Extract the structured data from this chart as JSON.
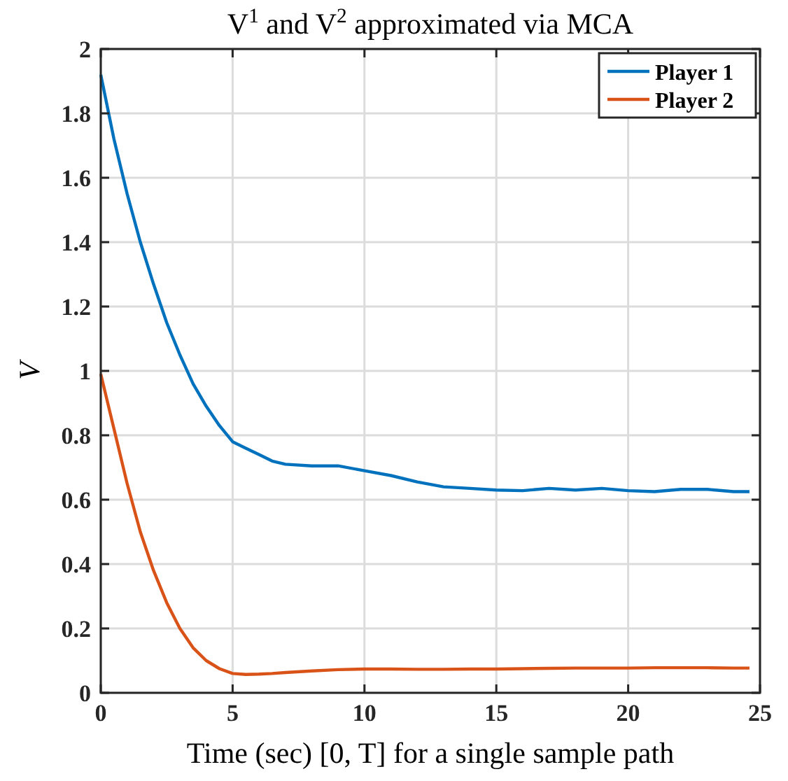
{
  "chart_data": {
    "type": "line",
    "title": "V$^{1}$ and V$^{2}$ approximated via MCA",
    "xlabel": "Time (sec) [0, T] for a single sample path",
    "ylabel": "V",
    "xlim": [
      0,
      25
    ],
    "xticks": [
      0,
      5,
      10,
      15,
      20,
      25
    ],
    "ylim": [
      0,
      2
    ],
    "yticks": [
      0,
      0.2,
      0.4,
      0.6,
      0.8,
      1,
      1.2,
      1.4,
      1.6,
      1.8,
      2
    ],
    "grid": true,
    "legend": "top right",
    "line_style": "solid",
    "marker": "none",
    "x": [
      0,
      0.5,
      1,
      1.5,
      2,
      2.5,
      3,
      3.5,
      4,
      4.5,
      5,
      5.5,
      6,
      6.5,
      7,
      8,
      9,
      10,
      11,
      12,
      13,
      14,
      15,
      16,
      17,
      18,
      19,
      20,
      21,
      22,
      23,
      24,
      24.6
    ],
    "series": [
      {
        "name": "Player 1",
        "color": "#0072bd",
        "values": [
          1.92,
          1.72,
          1.55,
          1.4,
          1.27,
          1.15,
          1.05,
          0.96,
          0.89,
          0.83,
          0.78,
          0.76,
          0.74,
          0.72,
          0.71,
          0.705,
          0.705,
          0.69,
          0.675,
          0.655,
          0.64,
          0.635,
          0.63,
          0.628,
          0.635,
          0.63,
          0.635,
          0.628,
          0.625,
          0.632,
          0.632,
          0.625,
          0.625
        ]
      },
      {
        "name": "Player 2",
        "color": "#d95319",
        "values": [
          0.99,
          0.82,
          0.65,
          0.5,
          0.38,
          0.28,
          0.2,
          0.14,
          0.1,
          0.075,
          0.06,
          0.057,
          0.058,
          0.06,
          0.063,
          0.068,
          0.072,
          0.074,
          0.074,
          0.073,
          0.073,
          0.074,
          0.074,
          0.075,
          0.076,
          0.077,
          0.077,
          0.077,
          0.078,
          0.078,
          0.078,
          0.077,
          0.077
        ]
      }
    ]
  }
}
